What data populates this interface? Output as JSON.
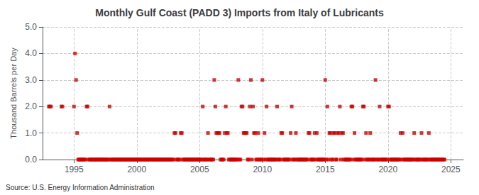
{
  "chart_data": {
    "type": "scatter",
    "title": "Monthly Gulf Coast (PADD 3) Imports from Italy of Lubricants",
    "ylabel": "Thousand Barrels per Day",
    "annotation": "Source: U.S. Energy Information Administration",
    "xlim": [
      1992.5,
      2026
    ],
    "ylim": [
      0,
      5.0
    ],
    "xticks": [
      1995,
      2000,
      2005,
      2010,
      2015,
      2020,
      2025
    ],
    "yticks": [
      {
        "value": 0.0,
        "label": "0.0"
      },
      {
        "value": 1.0,
        "label": "1.0"
      },
      {
        "value": 2.0,
        "label": "2.0"
      },
      {
        "value": 3.0,
        "label": "3.0"
      },
      {
        "value": 4.0,
        "label": "4.0"
      },
      {
        "value": 5.0,
        "label": "5.0"
      }
    ],
    "grid": true,
    "color": "#cc0000",
    "marker": "square",
    "x": [
      1993.0,
      1993.083,
      1993.167,
      1994.0,
      1994.083,
      1995.0,
      1995.083,
      1995.167,
      1995.25,
      1995.333,
      1995.417,
      1995.5,
      1995.583,
      1995.667,
      1995.75,
      1995.833,
      1995.917,
      1996.0,
      1996.083,
      1996.167,
      1996.25,
      1996.333,
      1996.417,
      1996.5,
      1996.583,
      1996.667,
      1996.75,
      1996.833,
      1996.917,
      1997.0,
      1997.083,
      1997.167,
      1997.25,
      1997.333,
      1997.417,
      1997.5,
      1997.583,
      1997.667,
      1997.75,
      1997.833,
      1997.917,
      1998.0,
      1998.083,
      1998.167,
      1998.25,
      1998.333,
      1998.417,
      1998.5,
      1998.583,
      1998.667,
      1998.75,
      1998.833,
      1998.917,
      1999.0,
      1999.083,
      1999.167,
      1999.25,
      1999.333,
      1999.417,
      1999.5,
      1999.583,
      1999.667,
      1999.75,
      1999.833,
      1999.917,
      2000.0,
      2000.083,
      2000.167,
      2000.25,
      2000.333,
      2000.417,
      2000.5,
      2000.583,
      2000.667,
      2000.75,
      2000.833,
      2000.917,
      2001.0,
      2001.083,
      2001.167,
      2001.25,
      2001.333,
      2001.417,
      2001.5,
      2001.583,
      2001.667,
      2001.75,
      2001.833,
      2001.917,
      2002.0,
      2002.083,
      2002.167,
      2002.25,
      2002.333,
      2002.417,
      2002.5,
      2002.583,
      2002.667,
      2002.75,
      2002.833,
      2002.917,
      2003.0,
      2003.083,
      2003.167,
      2003.25,
      2003.333,
      2003.417,
      2003.5,
      2003.583,
      2003.667,
      2003.75,
      2003.833,
      2003.917,
      2004.0,
      2004.083,
      2004.167,
      2004.25,
      2004.333,
      2004.417,
      2004.5,
      2004.583,
      2004.667,
      2004.75,
      2004.833,
      2004.917,
      2005.0,
      2005.083,
      2005.167,
      2005.25,
      2005.333,
      2005.417,
      2005.5,
      2005.583,
      2005.667,
      2005.75,
      2005.833,
      2005.917,
      2006.0,
      2006.083,
      2006.167,
      2006.25,
      2006.333,
      2006.417,
      2006.5,
      2006.583,
      2006.667,
      2006.75,
      2006.833,
      2006.917,
      2007.0,
      2007.083,
      2007.167,
      2007.25,
      2007.333,
      2007.417,
      2007.5,
      2007.583,
      2007.667,
      2007.75,
      2007.833,
      2007.917,
      2008.0,
      2008.083,
      2008.167,
      2008.25,
      2008.333,
      2008.417,
      2008.5,
      2008.583,
      2008.667,
      2008.75,
      2008.833,
      2008.917,
      2009.0,
      2009.083,
      2009.167,
      2009.25,
      2009.333,
      2009.417,
      2009.5,
      2009.583,
      2009.667,
      2009.75,
      2009.833,
      2009.917,
      2010.0,
      2010.083,
      2010.167,
      2010.25,
      2010.333,
      2010.417,
      2010.5,
      2010.583,
      2010.667,
      2010.75,
      2010.833,
      2010.917,
      2011.0,
      2011.083,
      2011.167,
      2011.25,
      2011.333,
      2011.417,
      2011.5,
      2011.583,
      2011.667,
      2011.75,
      2011.833,
      2011.917,
      2012.0,
      2012.083,
      2012.167,
      2012.25,
      2012.333,
      2012.417,
      2012.5,
      2012.583,
      2012.667,
      2012.75,
      2012.833,
      2012.917,
      2013.0,
      2013.083,
      2013.167,
      2013.25,
      2013.333,
      2013.417,
      2013.5,
      2013.583,
      2013.667,
      2013.75,
      2013.833,
      2013.917,
      2014.0,
      2014.083,
      2014.167,
      2014.25,
      2014.333,
      2014.417,
      2014.5,
      2014.583,
      2014.667,
      2014.75,
      2014.833,
      2014.917,
      2015.0,
      2015.083,
      2015.167,
      2015.25,
      2015.333,
      2015.417,
      2015.5,
      2015.583,
      2015.667,
      2015.75,
      2015.833,
      2015.917,
      2016.0,
      2016.083,
      2016.167,
      2016.25,
      2016.333,
      2016.417,
      2016.5,
      2016.583,
      2016.667,
      2016.75,
      2016.833,
      2016.917,
      2017.0,
      2017.083,
      2017.167,
      2017.25,
      2017.333,
      2017.417,
      2017.5,
      2017.583,
      2017.667,
      2017.75,
      2017.833,
      2017.917,
      2018.0,
      2018.083,
      2018.167,
      2018.25,
      2018.333,
      2018.417,
      2018.5,
      2018.583,
      2018.667,
      2018.75,
      2018.833,
      2018.917,
      2019.0,
      2019.083,
      2019.167,
      2019.25,
      2019.333,
      2019.417,
      2019.5,
      2019.583,
      2019.667,
      2019.75,
      2019.833,
      2019.917,
      2020.0,
      2020.083,
      2020.167,
      2020.25,
      2020.333,
      2020.417,
      2020.5,
      2020.583,
      2020.667,
      2020.75,
      2020.833,
      2020.917,
      2021.0,
      2021.083,
      2021.167,
      2021.25,
      2021.333,
      2021.417,
      2021.5,
      2021.583,
      2021.667,
      2021.75,
      2021.833,
      2021.917,
      2022.0,
      2022.083,
      2022.167,
      2022.25,
      2022.333,
      2022.417,
      2022.5,
      2022.583,
      2022.667,
      2022.75,
      2022.833,
      2022.917,
      2023.0,
      2023.083,
      2023.167,
      2023.25,
      2023.333,
      2023.417,
      2023.5,
      2023.583,
      2023.667,
      2023.75,
      2023.833,
      2023.917,
      2024.0,
      2024.083,
      2024.167,
      2024.25,
      2024.333,
      2024.417,
      2024.5
    ],
    "values": [
      2.0,
      2.0,
      2.0,
      2.0,
      2.0,
      2.0,
      4.0,
      3.0,
      1.0,
      0.0,
      0.0,
      0.0,
      0.0,
      0.0,
      0.0,
      0.0,
      0.0,
      2.0,
      2.0,
      0.0,
      0.0,
      0.0,
      0.0,
      0.0,
      0.0,
      0.0,
      0.0,
      0.0,
      0.0,
      0.0,
      0.0,
      0.0,
      0.0,
      0.0,
      0.0,
      0.0,
      0.0,
      0.0,
      0.0,
      2.0,
      0.0,
      0.0,
      0.0,
      0.0,
      0.0,
      0.0,
      0.0,
      0.0,
      0.0,
      0.0,
      0.0,
      0.0,
      0.0,
      0.0,
      0.0,
      0.0,
      0.0,
      0.0,
      0.0,
      0.0,
      0.0,
      0.0,
      0.0,
      0.0,
      0.0,
      0.0,
      0.0,
      0.0,
      0.0,
      0.0,
      0.0,
      0.0,
      0.0,
      0.0,
      0.0,
      0.0,
      0.0,
      0.0,
      0.0,
      0.0,
      0.0,
      0.0,
      0.0,
      0.0,
      0.0,
      0.0,
      0.0,
      0.0,
      0.0,
      0.0,
      0.0,
      0.0,
      0.0,
      0.0,
      0.0,
      0.0,
      0.0,
      0.0,
      0.0,
      0.0,
      0.0,
      1.0,
      1.0,
      0.0,
      0.0,
      0.0,
      0.0,
      1.0,
      1.0,
      0.0,
      0.0,
      0.0,
      0.0,
      0.0,
      0.0,
      0.0,
      0.0,
      0.0,
      0.0,
      0.0,
      0.0,
      0.0,
      0.0,
      0.0,
      0.0,
      0.0,
      0.0,
      0.0,
      2.0,
      0.0,
      0.0,
      0.0,
      0.0,
      1.0,
      0.0,
      0.0,
      0.0,
      0.0,
      0.0,
      3.0,
      2.0,
      1.0,
      1.0,
      1.0,
      1.0,
      0.0,
      0.0,
      0.0,
      0.0,
      1.0,
      2.0,
      1.0,
      1.0,
      0.0,
      0.0,
      0.0,
      0.0,
      0.0,
      0.0,
      0.0,
      0.0,
      0.0,
      3.0,
      0.0,
      0.0,
      2.0,
      2.0,
      1.0,
      1.0,
      1.0,
      1.0,
      0.0,
      0.0,
      2.0,
      3.0,
      0.0,
      2.0,
      1.0,
      1.0,
      0.0,
      0.0,
      1.0,
      0.0,
      0.0,
      0.0,
      3.0,
      0.0,
      1.0,
      0.0,
      2.0,
      0.0,
      0.0,
      0.0,
      0.0,
      0.0,
      0.0,
      0.0,
      0.0,
      0.0,
      2.0,
      0.0,
      0.0,
      0.0,
      1.0,
      1.0,
      0.0,
      0.0,
      0.0,
      0.0,
      0.0,
      0.0,
      0.0,
      1.0,
      2.0,
      0.0,
      0.0,
      0.0,
      1.0,
      0.0,
      0.0,
      0.0,
      0.0,
      0.0,
      0.0,
      0.0,
      0.0,
      0.0,
      0.0,
      0.0,
      1.0,
      1.0,
      0.0,
      0.0,
      0.0,
      0.0,
      1.0,
      0.0,
      1.0,
      0.0,
      0.0,
      0.0,
      0.0,
      0.0,
      0.0,
      0.0,
      3.0,
      0.0,
      2.0,
      0.0,
      1.0,
      1.0,
      0.0,
      0.0,
      1.0,
      1.0,
      0.0,
      0.0,
      1.0,
      1.0,
      2.0,
      0.0,
      1.0,
      1.0,
      0.0,
      0.0,
      0.0,
      0.0,
      0.0,
      0.0,
      0.0,
      2.0,
      2.0,
      0.0,
      1.0,
      0.0,
      0.0,
      0.0,
      0.0,
      0.0,
      0.0,
      0.0,
      2.0,
      2.0,
      0.0,
      1.0,
      0.0,
      0.0,
      0.0,
      1.0,
      0.0,
      0.0,
      0.0,
      0.0,
      3.0,
      0.0,
      0.0,
      0.0,
      2.0,
      0.0,
      0.0,
      0.0,
      0.0,
      0.0,
      0.0,
      0.0,
      2.0,
      2.0,
      0.0,
      0.0,
      0.0,
      0.0,
      0.0,
      0.0,
      0.0,
      0.0,
      0.0,
      0.0,
      1.0,
      0.0,
      1.0,
      0.0,
      0.0,
      0.0,
      0.0,
      0.0,
      0.0,
      0.0,
      0.0,
      0.0,
      0.0,
      1.0,
      0.0,
      0.0,
      0.0,
      0.0,
      0.0,
      0.0,
      1.0,
      0.0,
      0.0,
      0.0,
      0.0,
      0.0,
      0.0,
      1.0,
      0.0,
      0.0,
      0.0,
      0.0,
      0.0,
      0.0,
      0.0,
      0.0,
      0.0,
      0.0,
      0.0,
      0.0,
      0.0,
      0.0,
      0.0
    ]
  }
}
